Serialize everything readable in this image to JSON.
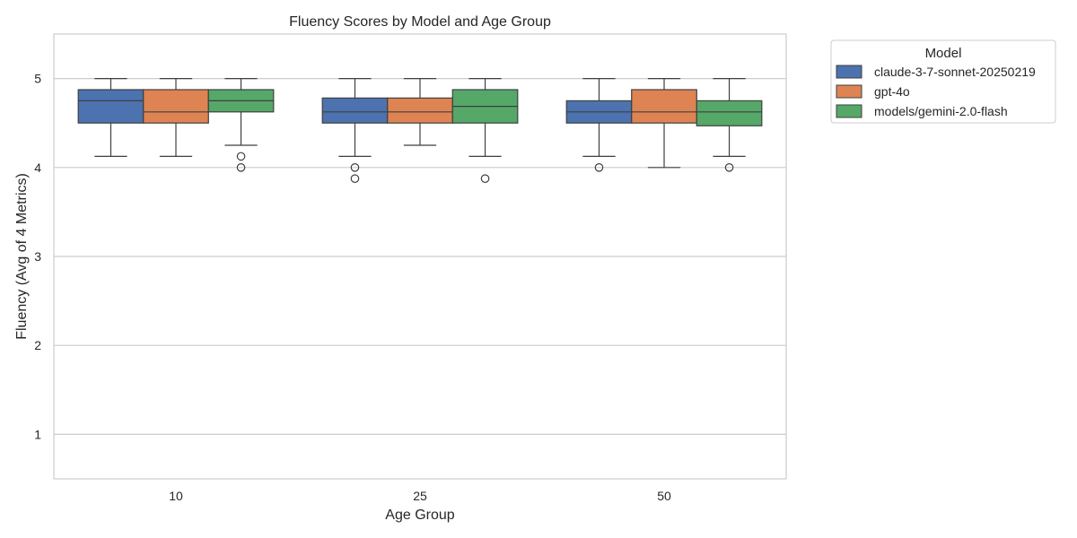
{
  "chart_data": {
    "type": "box",
    "title": "Fluency Scores by Model and Age Group",
    "xlabel": "Age Group",
    "ylabel": "Fluency (Avg of 4 Metrics)",
    "ylim": [
      0.5,
      5.5
    ],
    "yticks": [
      1,
      2,
      3,
      4,
      5
    ],
    "grid": "horizontal",
    "categories": [
      "10",
      "25",
      "50"
    ],
    "legend": {
      "title": "Model",
      "placement": "outside-top-right"
    },
    "series": [
      {
        "name": "claude-3-7-sonnet-20250219",
        "color": "#4c72b0",
        "boxes": [
          {
            "category": "10",
            "whisker_low": 4.125,
            "q1": 4.5,
            "median": 4.75,
            "q3": 4.875,
            "whisker_high": 5.0,
            "outliers": []
          },
          {
            "category": "25",
            "whisker_low": 4.125,
            "q1": 4.5,
            "median": 4.625,
            "q3": 4.781,
            "whisker_high": 5.0,
            "outliers": [
              4.0,
              3.875
            ]
          },
          {
            "category": "50",
            "whisker_low": 4.125,
            "q1": 4.5,
            "median": 4.625,
            "q3": 4.75,
            "whisker_high": 5.0,
            "outliers": [
              4.0
            ]
          }
        ]
      },
      {
        "name": "gpt-4o",
        "color": "#dd8452",
        "boxes": [
          {
            "category": "10",
            "whisker_low": 4.125,
            "q1": 4.5,
            "median": 4.625,
            "q3": 4.875,
            "whisker_high": 5.0,
            "outliers": []
          },
          {
            "category": "25",
            "whisker_low": 4.25,
            "q1": 4.5,
            "median": 4.625,
            "q3": 4.781,
            "whisker_high": 5.0,
            "outliers": []
          },
          {
            "category": "50",
            "whisker_low": 4.0,
            "q1": 4.5,
            "median": 4.625,
            "q3": 4.875,
            "whisker_high": 5.0,
            "outliers": []
          }
        ]
      },
      {
        "name": "models/gemini-2.0-flash",
        "color": "#55a868",
        "boxes": [
          {
            "category": "10",
            "whisker_low": 4.25,
            "q1": 4.625,
            "median": 4.75,
            "q3": 4.875,
            "whisker_high": 5.0,
            "outliers": [
              4.125,
              4.0
            ]
          },
          {
            "category": "25",
            "whisker_low": 4.125,
            "q1": 4.5,
            "median": 4.6875,
            "q3": 4.875,
            "whisker_high": 5.0,
            "outliers": [
              3.875
            ]
          },
          {
            "category": "50",
            "whisker_low": 4.125,
            "q1": 4.469,
            "median": 4.625,
            "q3": 4.75,
            "whisker_high": 5.0,
            "outliers": [
              4.0
            ]
          }
        ]
      }
    ]
  }
}
